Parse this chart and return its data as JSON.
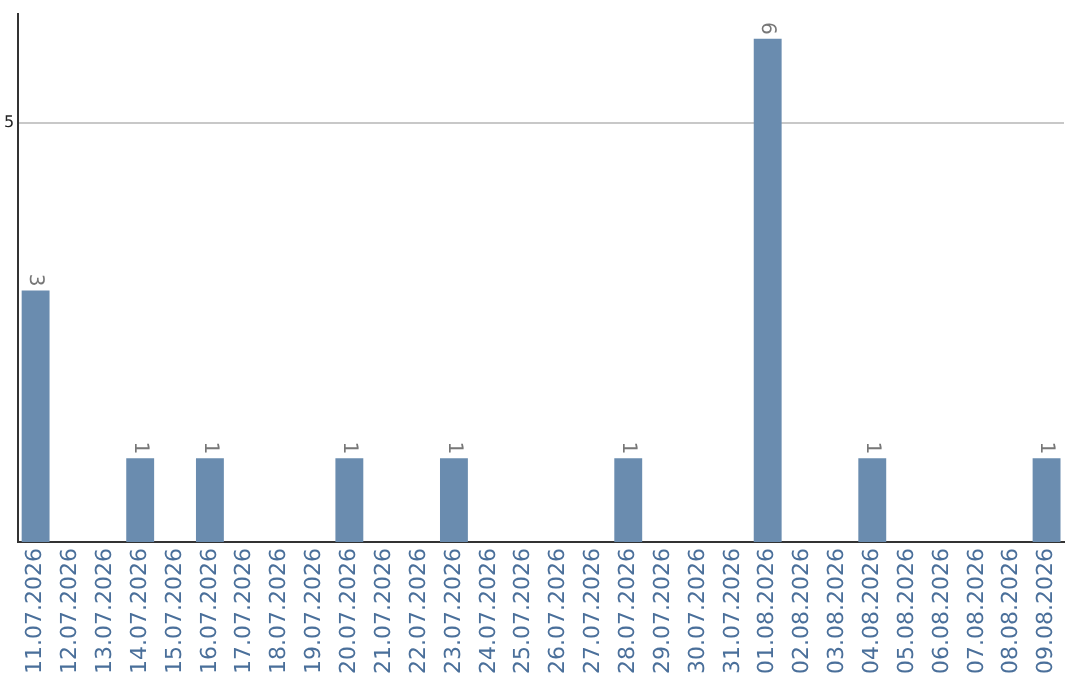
{
  "chart_data": {
    "type": "bar",
    "categories": [
      "11.07.2026",
      "12.07.2026",
      "13.07.2026",
      "14.07.2026",
      "15.07.2026",
      "16.07.2026",
      "17.07.2026",
      "18.07.2026",
      "19.07.2026",
      "20.07.2026",
      "21.07.2026",
      "22.07.2026",
      "23.07.2026",
      "24.07.2026",
      "25.07.2026",
      "26.07.2026",
      "27.07.2026",
      "28.07.2026",
      "29.07.2026",
      "30.07.2026",
      "31.07.2026",
      "01.08.2026",
      "02.08.2026",
      "03.08.2026",
      "04.08.2026",
      "05.08.2026",
      "06.08.2026",
      "07.08.2026",
      "08.08.2026",
      "09.08.2026"
    ],
    "values": [
      3,
      0,
      0,
      1,
      0,
      1,
      0,
      0,
      0,
      1,
      0,
      0,
      1,
      0,
      0,
      0,
      0,
      1,
      0,
      0,
      0,
      6,
      0,
      0,
      1,
      0,
      0,
      0,
      0,
      1
    ],
    "value_labels": [
      "3",
      null,
      null,
      "1",
      null,
      "1",
      null,
      null,
      null,
      "1",
      null,
      null,
      "1",
      null,
      null,
      null,
      null,
      "1",
      null,
      null,
      null,
      "6",
      null,
      null,
      "1",
      null,
      null,
      null,
      null,
      "1"
    ],
    "color": "#6a8caf",
    "ylim": [
      0,
      6.3
    ],
    "yticks": [
      5
    ],
    "grid": "y",
    "legend": false
  }
}
